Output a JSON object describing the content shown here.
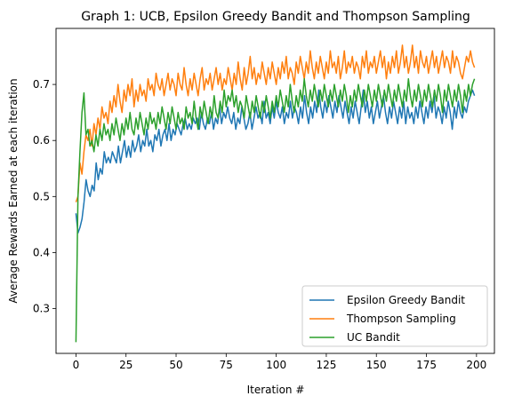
{
  "chart_data": {
    "type": "line",
    "title": "Graph 1: UCB, Epsilon Greedy Bandit and Thompson Sampling",
    "xlabel": "Iteration #",
    "ylabel": "Average Rewards Earned at each iteration",
    "xlim": [
      -9.95,
      208.95
    ],
    "ylim": [
      0.22,
      0.8
    ],
    "xticks": [
      0,
      25,
      50,
      75,
      100,
      125,
      150,
      175,
      200
    ],
    "yticks": [
      0.3,
      0.4,
      0.5,
      0.6,
      0.7
    ],
    "grid": false,
    "legend": "lower-right",
    "x": {
      "start": 0,
      "end": 199
    },
    "series": [
      {
        "name": "Epsilon Greedy Bandit",
        "color": "#1f77b4",
        "values": [
          0.47,
          0.435,
          0.445,
          0.46,
          0.49,
          0.53,
          0.51,
          0.5,
          0.52,
          0.51,
          0.56,
          0.53,
          0.55,
          0.54,
          0.58,
          0.56,
          0.57,
          0.56,
          0.58,
          0.57,
          0.56,
          0.59,
          0.56,
          0.58,
          0.6,
          0.57,
          0.59,
          0.57,
          0.6,
          0.58,
          0.59,
          0.61,
          0.58,
          0.6,
          0.59,
          0.62,
          0.59,
          0.6,
          0.58,
          0.61,
          0.6,
          0.62,
          0.59,
          0.61,
          0.62,
          0.6,
          0.63,
          0.6,
          0.62,
          0.61,
          0.63,
          0.62,
          0.61,
          0.63,
          0.64,
          0.62,
          0.63,
          0.62,
          0.64,
          0.63,
          0.64,
          0.62,
          0.65,
          0.63,
          0.62,
          0.64,
          0.63,
          0.65,
          0.62,
          0.64,
          0.63,
          0.66,
          0.63,
          0.65,
          0.64,
          0.66,
          0.64,
          0.63,
          0.65,
          0.62,
          0.64,
          0.63,
          0.66,
          0.64,
          0.62,
          0.63,
          0.65,
          0.62,
          0.64,
          0.66,
          0.64,
          0.65,
          0.63,
          0.67,
          0.64,
          0.65,
          0.63,
          0.66,
          0.64,
          0.67,
          0.65,
          0.64,
          0.66,
          0.63,
          0.65,
          0.64,
          0.67,
          0.64,
          0.66,
          0.65,
          0.63,
          0.66,
          0.64,
          0.68,
          0.65,
          0.63,
          0.66,
          0.64,
          0.67,
          0.65,
          0.69,
          0.66,
          0.64,
          0.67,
          0.65,
          0.68,
          0.66,
          0.64,
          0.67,
          0.65,
          0.68,
          0.66,
          0.64,
          0.67,
          0.65,
          0.63,
          0.66,
          0.64,
          0.67,
          0.65,
          0.63,
          0.66,
          0.69,
          0.65,
          0.67,
          0.64,
          0.66,
          0.63,
          0.65,
          0.67,
          0.64,
          0.66,
          0.68,
          0.65,
          0.63,
          0.66,
          0.64,
          0.67,
          0.65,
          0.63,
          0.66,
          0.64,
          0.67,
          0.63,
          0.66,
          0.64,
          0.65,
          0.63,
          0.66,
          0.64,
          0.67,
          0.65,
          0.63,
          0.66,
          0.64,
          0.67,
          0.65,
          0.68,
          0.64,
          0.66,
          0.65,
          0.63,
          0.66,
          0.64,
          0.67,
          0.65,
          0.62,
          0.66,
          0.64,
          0.67,
          0.65,
          0.64,
          0.66,
          0.65,
          0.67,
          0.68,
          0.69,
          0.68
        ]
      },
      {
        "name": "Thompson Sampling",
        "color": "#ff7f0e",
        "values": [
          0.49,
          0.5,
          0.56,
          0.54,
          0.58,
          0.61,
          0.6,
          0.62,
          0.59,
          0.63,
          0.61,
          0.64,
          0.62,
          0.66,
          0.64,
          0.65,
          0.63,
          0.67,
          0.65,
          0.68,
          0.66,
          0.7,
          0.67,
          0.65,
          0.69,
          0.67,
          0.7,
          0.68,
          0.71,
          0.66,
          0.69,
          0.67,
          0.7,
          0.68,
          0.69,
          0.67,
          0.71,
          0.69,
          0.7,
          0.68,
          0.72,
          0.7,
          0.69,
          0.71,
          0.68,
          0.7,
          0.72,
          0.69,
          0.71,
          0.7,
          0.68,
          0.72,
          0.7,
          0.69,
          0.73,
          0.7,
          0.68,
          0.71,
          0.69,
          0.72,
          0.7,
          0.68,
          0.71,
          0.73,
          0.69,
          0.71,
          0.7,
          0.72,
          0.69,
          0.71,
          0.73,
          0.7,
          0.72,
          0.69,
          0.71,
          0.7,
          0.73,
          0.71,
          0.69,
          0.72,
          0.7,
          0.74,
          0.71,
          0.69,
          0.73,
          0.7,
          0.72,
          0.75,
          0.71,
          0.73,
          0.7,
          0.72,
          0.71,
          0.74,
          0.72,
          0.7,
          0.73,
          0.71,
          0.74,
          0.72,
          0.7,
          0.73,
          0.71,
          0.74,
          0.72,
          0.75,
          0.71,
          0.73,
          0.72,
          0.7,
          0.74,
          0.72,
          0.75,
          0.73,
          0.71,
          0.74,
          0.72,
          0.76,
          0.73,
          0.71,
          0.74,
          0.72,
          0.75,
          0.73,
          0.71,
          0.74,
          0.72,
          0.76,
          0.73,
          0.74,
          0.72,
          0.75,
          0.71,
          0.73,
          0.76,
          0.72,
          0.74,
          0.73,
          0.75,
          0.72,
          0.74,
          0.73,
          0.71,
          0.75,
          0.73,
          0.76,
          0.72,
          0.74,
          0.73,
          0.75,
          0.72,
          0.74,
          0.76,
          0.73,
          0.75,
          0.71,
          0.74,
          0.72,
          0.75,
          0.73,
          0.76,
          0.72,
          0.74,
          0.77,
          0.73,
          0.75,
          0.72,
          0.74,
          0.77,
          0.73,
          0.75,
          0.72,
          0.76,
          0.74,
          0.73,
          0.75,
          0.72,
          0.74,
          0.76,
          0.73,
          0.75,
          0.72,
          0.74,
          0.76,
          0.73,
          0.75,
          0.74,
          0.72,
          0.76,
          0.73,
          0.75,
          0.74,
          0.72,
          0.71,
          0.73,
          0.75,
          0.74,
          0.76,
          0.74,
          0.73
        ]
      },
      {
        "name": "UC Bandit",
        "color": "#2ca02c",
        "values": [
          0.24,
          0.5,
          0.58,
          0.65,
          0.685,
          0.61,
          0.62,
          0.59,
          0.6,
          0.58,
          0.61,
          0.59,
          0.62,
          0.6,
          0.63,
          0.61,
          0.62,
          0.6,
          0.63,
          0.61,
          0.64,
          0.62,
          0.6,
          0.63,
          0.61,
          0.64,
          0.62,
          0.65,
          0.62,
          0.61,
          0.64,
          0.62,
          0.65,
          0.63,
          0.61,
          0.64,
          0.62,
          0.65,
          0.63,
          0.64,
          0.62,
          0.65,
          0.63,
          0.66,
          0.64,
          0.62,
          0.65,
          0.63,
          0.66,
          0.64,
          0.62,
          0.65,
          0.63,
          0.64,
          0.62,
          0.66,
          0.64,
          0.65,
          0.63,
          0.67,
          0.64,
          0.62,
          0.66,
          0.64,
          0.67,
          0.65,
          0.63,
          0.66,
          0.64,
          0.68,
          0.65,
          0.64,
          0.67,
          0.65,
          0.69,
          0.66,
          0.68,
          0.67,
          0.69,
          0.66,
          0.68,
          0.65,
          0.67,
          0.66,
          0.64,
          0.68,
          0.66,
          0.64,
          0.67,
          0.65,
          0.68,
          0.66,
          0.64,
          0.67,
          0.65,
          0.68,
          0.66,
          0.64,
          0.67,
          0.65,
          0.68,
          0.66,
          0.69,
          0.67,
          0.65,
          0.68,
          0.66,
          0.7,
          0.67,
          0.65,
          0.68,
          0.66,
          0.69,
          0.67,
          0.71,
          0.68,
          0.66,
          0.69,
          0.67,
          0.7,
          0.68,
          0.66,
          0.69,
          0.67,
          0.7,
          0.68,
          0.66,
          0.69,
          0.67,
          0.7,
          0.68,
          0.66,
          0.69,
          0.67,
          0.7,
          0.68,
          0.65,
          0.68,
          0.66,
          0.69,
          0.67,
          0.7,
          0.68,
          0.66,
          0.69,
          0.67,
          0.7,
          0.68,
          0.66,
          0.69,
          0.67,
          0.7,
          0.68,
          0.66,
          0.69,
          0.67,
          0.7,
          0.68,
          0.66,
          0.69,
          0.67,
          0.7,
          0.68,
          0.66,
          0.69,
          0.67,
          0.71,
          0.68,
          0.66,
          0.69,
          0.67,
          0.7,
          0.68,
          0.66,
          0.69,
          0.67,
          0.7,
          0.68,
          0.66,
          0.69,
          0.67,
          0.7,
          0.68,
          0.65,
          0.69,
          0.67,
          0.7,
          0.68,
          0.66,
          0.69,
          0.67,
          0.7,
          0.68,
          0.65,
          0.69,
          0.67,
          0.7,
          0.68,
          0.7,
          0.71
        ]
      }
    ]
  }
}
